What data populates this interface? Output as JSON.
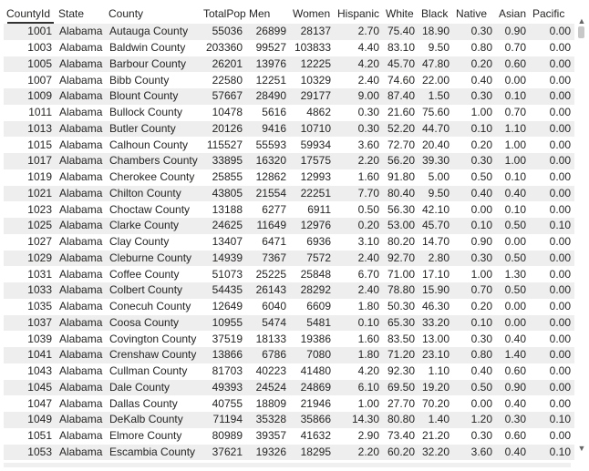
{
  "table": {
    "columns": [
      "CountyId",
      "State",
      "County",
      "TotalPop",
      "Men",
      "Women",
      "Hispanic",
      "White",
      "Black",
      "Native",
      "Asian",
      "Pacific"
    ],
    "sorted_column": "CountyId",
    "rows": [
      [
        "1001",
        "Alabama",
        "Autauga County",
        "55036",
        "26899",
        "28137",
        "2.70",
        "75.40",
        "18.90",
        "0.30",
        "0.90",
        "0.00"
      ],
      [
        "1003",
        "Alabama",
        "Baldwin County",
        "203360",
        "99527",
        "103833",
        "4.40",
        "83.10",
        "9.50",
        "0.80",
        "0.70",
        "0.00"
      ],
      [
        "1005",
        "Alabama",
        "Barbour County",
        "26201",
        "13976",
        "12225",
        "4.20",
        "45.70",
        "47.80",
        "0.20",
        "0.60",
        "0.00"
      ],
      [
        "1007",
        "Alabama",
        "Bibb County",
        "22580",
        "12251",
        "10329",
        "2.40",
        "74.60",
        "22.00",
        "0.40",
        "0.00",
        "0.00"
      ],
      [
        "1009",
        "Alabama",
        "Blount County",
        "57667",
        "28490",
        "29177",
        "9.00",
        "87.40",
        "1.50",
        "0.30",
        "0.10",
        "0.00"
      ],
      [
        "1011",
        "Alabama",
        "Bullock County",
        "10478",
        "5616",
        "4862",
        "0.30",
        "21.60",
        "75.60",
        "1.00",
        "0.70",
        "0.00"
      ],
      [
        "1013",
        "Alabama",
        "Butler County",
        "20126",
        "9416",
        "10710",
        "0.30",
        "52.20",
        "44.70",
        "0.10",
        "1.10",
        "0.00"
      ],
      [
        "1015",
        "Alabama",
        "Calhoun County",
        "115527",
        "55593",
        "59934",
        "3.60",
        "72.70",
        "20.40",
        "0.20",
        "1.00",
        "0.00"
      ],
      [
        "1017",
        "Alabama",
        "Chambers County",
        "33895",
        "16320",
        "17575",
        "2.20",
        "56.20",
        "39.30",
        "0.30",
        "1.00",
        "0.00"
      ],
      [
        "1019",
        "Alabama",
        "Cherokee County",
        "25855",
        "12862",
        "12993",
        "1.60",
        "91.80",
        "5.00",
        "0.50",
        "0.10",
        "0.00"
      ],
      [
        "1021",
        "Alabama",
        "Chilton County",
        "43805",
        "21554",
        "22251",
        "7.70",
        "80.40",
        "9.50",
        "0.40",
        "0.40",
        "0.00"
      ],
      [
        "1023",
        "Alabama",
        "Choctaw County",
        "13188",
        "6277",
        "6911",
        "0.50",
        "56.30",
        "42.10",
        "0.00",
        "0.10",
        "0.00"
      ],
      [
        "1025",
        "Alabama",
        "Clarke County",
        "24625",
        "11649",
        "12976",
        "0.20",
        "53.00",
        "45.70",
        "0.10",
        "0.50",
        "0.10"
      ],
      [
        "1027",
        "Alabama",
        "Clay County",
        "13407",
        "6471",
        "6936",
        "3.10",
        "80.20",
        "14.70",
        "0.90",
        "0.00",
        "0.00"
      ],
      [
        "1029",
        "Alabama",
        "Cleburne County",
        "14939",
        "7367",
        "7572",
        "2.40",
        "92.70",
        "2.80",
        "0.30",
        "0.50",
        "0.00"
      ],
      [
        "1031",
        "Alabama",
        "Coffee County",
        "51073",
        "25225",
        "25848",
        "6.70",
        "71.00",
        "17.10",
        "1.00",
        "1.30",
        "0.00"
      ],
      [
        "1033",
        "Alabama",
        "Colbert County",
        "54435",
        "26143",
        "28292",
        "2.40",
        "78.80",
        "15.90",
        "0.70",
        "0.50",
        "0.00"
      ],
      [
        "1035",
        "Alabama",
        "Conecuh County",
        "12649",
        "6040",
        "6609",
        "1.80",
        "50.30",
        "46.30",
        "0.20",
        "0.00",
        "0.00"
      ],
      [
        "1037",
        "Alabama",
        "Coosa County",
        "10955",
        "5474",
        "5481",
        "0.10",
        "65.30",
        "33.20",
        "0.10",
        "0.00",
        "0.00"
      ],
      [
        "1039",
        "Alabama",
        "Covington County",
        "37519",
        "18133",
        "19386",
        "1.60",
        "83.50",
        "13.00",
        "0.30",
        "0.40",
        "0.00"
      ],
      [
        "1041",
        "Alabama",
        "Crenshaw County",
        "13866",
        "6786",
        "7080",
        "1.80",
        "71.20",
        "23.10",
        "0.80",
        "1.40",
        "0.00"
      ],
      [
        "1043",
        "Alabama",
        "Cullman County",
        "81703",
        "40223",
        "41480",
        "4.20",
        "92.30",
        "1.10",
        "0.40",
        "0.60",
        "0.00"
      ],
      [
        "1045",
        "Alabama",
        "Dale County",
        "49393",
        "24524",
        "24869",
        "6.10",
        "69.50",
        "19.20",
        "0.50",
        "0.90",
        "0.00"
      ],
      [
        "1047",
        "Alabama",
        "Dallas County",
        "40755",
        "18809",
        "21946",
        "1.00",
        "27.70",
        "70.20",
        "0.00",
        "0.40",
        "0.00"
      ],
      [
        "1049",
        "Alabama",
        "DeKalb County",
        "71194",
        "35328",
        "35866",
        "14.30",
        "80.80",
        "1.40",
        "1.20",
        "0.30",
        "0.10"
      ],
      [
        "1051",
        "Alabama",
        "Elmore County",
        "80989",
        "39357",
        "41632",
        "2.90",
        "73.40",
        "21.20",
        "0.30",
        "0.60",
        "0.00"
      ],
      [
        "1053",
        "Alabama",
        "Escambia County",
        "37621",
        "19326",
        "18295",
        "2.20",
        "60.20",
        "32.20",
        "3.60",
        "0.40",
        "0.10"
      ]
    ]
  },
  "scrollbar": {
    "up_icon": "▲",
    "down_icon": "▼"
  }
}
